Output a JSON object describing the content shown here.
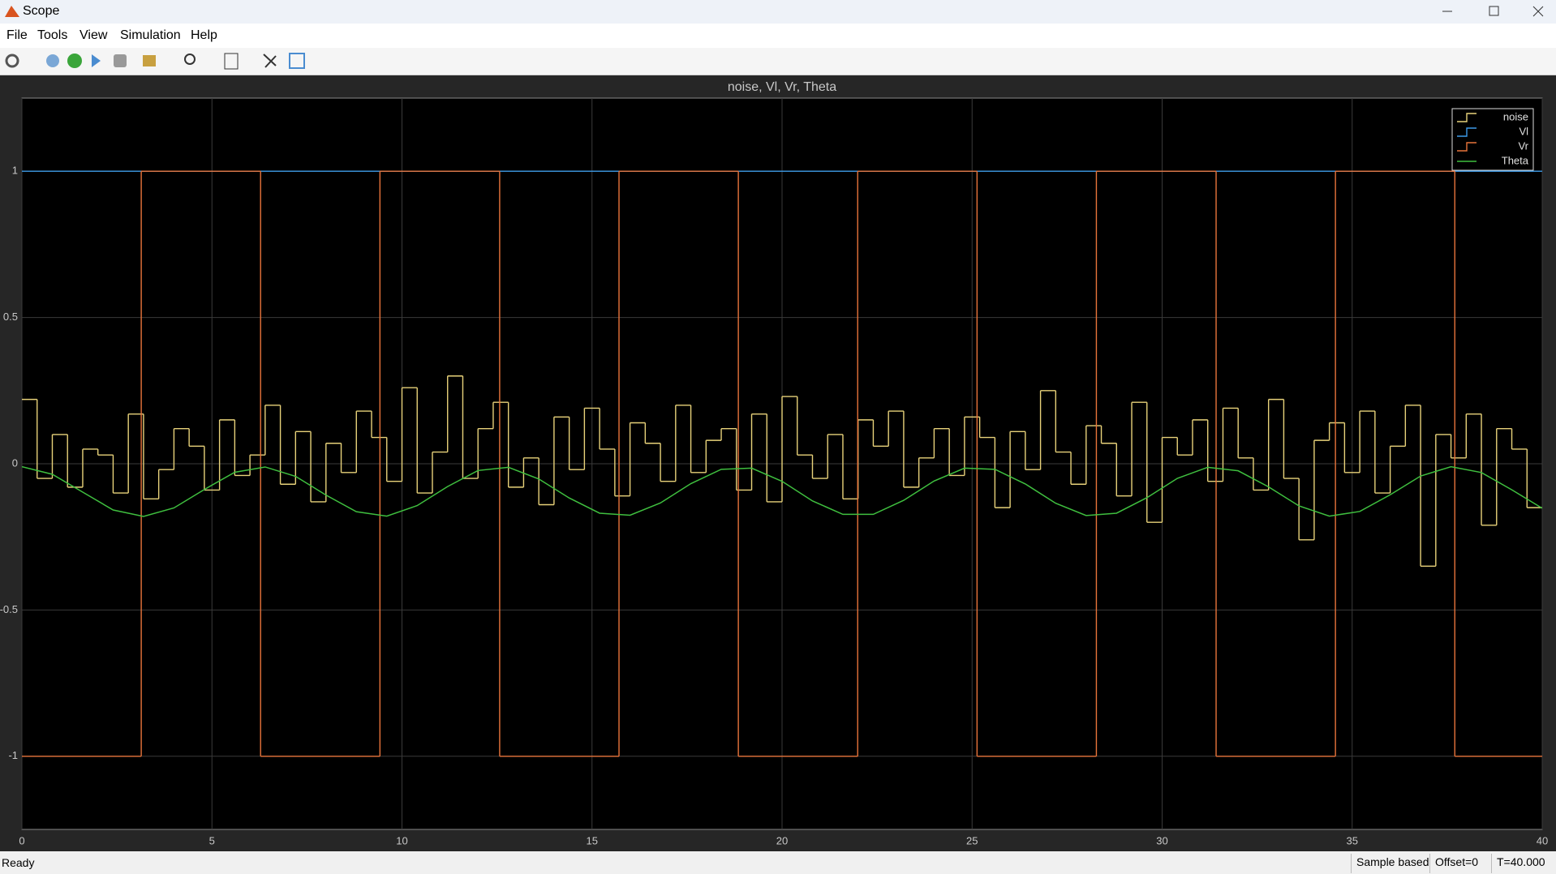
{
  "window": {
    "title": "Scope",
    "menu": [
      "File",
      "Tools",
      "View",
      "Simulation",
      "Help"
    ],
    "status": "Ready",
    "status_fields": [
      "Sample based",
      "Offset=0",
      "T=40.000"
    ]
  },
  "chart_data": {
    "type": "line",
    "title": "noise, Vl, Vr, Theta",
    "xlim": [
      0,
      40
    ],
    "ylim": [
      -1.25,
      1.25
    ],
    "xticks": [
      0,
      5,
      10,
      15,
      20,
      25,
      30,
      35,
      40
    ],
    "yticks": [
      -1,
      -0.5,
      0,
      0.5,
      1
    ],
    "grid": true,
    "legend": "upper right",
    "series": [
      {
        "name": "noise",
        "color": "#e8d27a",
        "step": true,
        "x": [
          0,
          0.4,
          0.8,
          1.2,
          1.6,
          2,
          2.4,
          2.8,
          3.2,
          3.6,
          4,
          4.4,
          4.8,
          5.2,
          5.6,
          6,
          6.4,
          6.8,
          7.2,
          7.6,
          8,
          8.4,
          8.8,
          9.2,
          9.6,
          10,
          10.4,
          10.8,
          11.2,
          11.6,
          12,
          12.4,
          12.8,
          13.2,
          13.6,
          14,
          14.4,
          14.8,
          15.2,
          15.6,
          16,
          16.4,
          16.8,
          17.2,
          17.6,
          18,
          18.4,
          18.8,
          19.2,
          19.6,
          20,
          20.4,
          20.8,
          21.2,
          21.6,
          22,
          22.4,
          22.8,
          23.2,
          23.6,
          24,
          24.4,
          24.8,
          25.2,
          25.6,
          26,
          26.4,
          26.8,
          27.2,
          27.6,
          28,
          28.4,
          28.8,
          29.2,
          29.6,
          30,
          30.4,
          30.8,
          31.2,
          31.6,
          32,
          32.4,
          32.8,
          33.2,
          33.6,
          34,
          34.4,
          34.8,
          35.2,
          35.6,
          36,
          36.4,
          36.8,
          37.2,
          37.6,
          38,
          38.4,
          38.8,
          39.2,
          39.6
        ],
        "values": [
          0.22,
          -0.05,
          0.1,
          -0.08,
          0.05,
          0.03,
          -0.1,
          0.17,
          -0.12,
          -0.02,
          0.12,
          0.06,
          -0.09,
          0.15,
          -0.04,
          0.03,
          0.2,
          -0.07,
          0.11,
          -0.13,
          0.07,
          -0.03,
          0.18,
          0.09,
          -0.06,
          0.26,
          -0.1,
          0.04,
          0.3,
          -0.05,
          0.12,
          0.21,
          -0.08,
          0.02,
          -0.14,
          0.16,
          -0.02,
          0.19,
          0.05,
          -0.11,
          0.14,
          0.07,
          -0.06,
          0.2,
          -0.03,
          0.08,
          0.12,
          -0.09,
          0.17,
          -0.13,
          0.23,
          0.03,
          -0.05,
          0.1,
          -0.12,
          0.15,
          0.06,
          0.18,
          -0.08,
          0.02,
          0.12,
          -0.04,
          0.16,
          0.09,
          -0.15,
          0.11,
          -0.02,
          0.25,
          0.04,
          -0.07,
          0.13,
          0.07,
          -0.11,
          0.21,
          -0.2,
          0.09,
          0.03,
          0.15,
          -0.06,
          0.19,
          0.02,
          -0.09,
          0.22,
          -0.05,
          -0.26,
          0.08,
          0.14,
          -0.03,
          0.18,
          -0.1,
          0.06,
          0.2,
          -0.35,
          0.1,
          0.02,
          0.17,
          -0.21,
          0.12,
          0.05,
          -0.15
        ]
      },
      {
        "name": "Vl",
        "color": "#3d9be9",
        "step": true,
        "x": [
          0
        ],
        "values": [
          1
        ]
      },
      {
        "name": "Vr",
        "color": "#e8743b",
        "step": true,
        "x": [
          0,
          3.14,
          6.28,
          9.42,
          12.57,
          15.71,
          18.85,
          21.99,
          25.13,
          28.27,
          31.42,
          34.56,
          37.7
        ],
        "values": [
          -1,
          1,
          -1,
          1,
          -1,
          1,
          -1,
          1,
          -1,
          1,
          -1,
          1,
          -1
        ]
      },
      {
        "name": "Theta",
        "color": "#3fbf3f",
        "step": false,
        "x": [
          0,
          0.8,
          1.6,
          2.4,
          3.2,
          4,
          4.8,
          5.6,
          6.4,
          7.2,
          8,
          8.8,
          9.6,
          10.4,
          11.2,
          12,
          12.8,
          13.6,
          14.4,
          15.2,
          16,
          16.8,
          17.6,
          18.4,
          19.2,
          20,
          20.8,
          21.6,
          22.4,
          23.2,
          24,
          24.8,
          25.6,
          26.4,
          27.2,
          28,
          28.8,
          29.6,
          30.4,
          31.2,
          32,
          32.8,
          33.6,
          34.4,
          35.2,
          36,
          36.8,
          37.6,
          38.4,
          39.2,
          40
        ],
        "values": [
          -0.01,
          -0.036,
          -0.097,
          -0.158,
          -0.18,
          -0.151,
          -0.088,
          -0.029,
          -0.011,
          -0.043,
          -0.107,
          -0.164,
          -0.179,
          -0.143,
          -0.078,
          -0.023,
          -0.012,
          -0.052,
          -0.117,
          -0.169,
          -0.176,
          -0.134,
          -0.068,
          -0.019,
          -0.015,
          -0.06,
          -0.127,
          -0.173,
          -0.173,
          -0.125,
          -0.059,
          -0.015,
          -0.019,
          -0.069,
          -0.135,
          -0.177,
          -0.169,
          -0.116,
          -0.05,
          -0.012,
          -0.024,
          -0.079,
          -0.144,
          -0.179,
          -0.163,
          -0.106,
          -0.042,
          -0.01,
          -0.03,
          -0.089,
          -0.152
        ]
      }
    ]
  }
}
